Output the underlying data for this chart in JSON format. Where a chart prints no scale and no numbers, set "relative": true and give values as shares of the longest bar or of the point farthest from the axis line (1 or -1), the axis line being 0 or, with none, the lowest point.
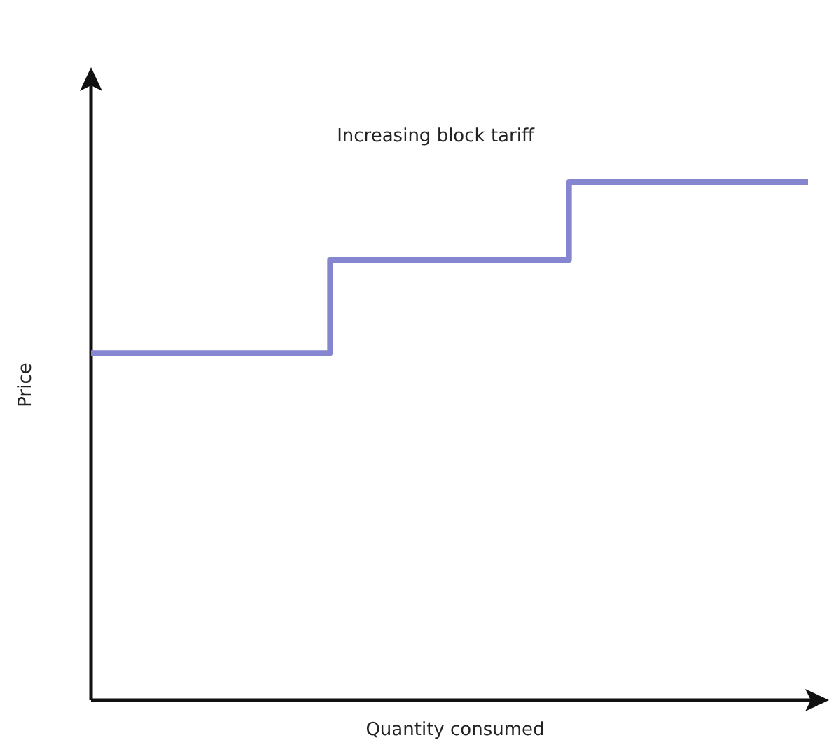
{
  "chart_data": {
    "type": "step",
    "title": "Increasing block tariff",
    "xlabel": "Quantity consumed",
    "ylabel": "Price",
    "relative": true,
    "categories": [
      null,
      null,
      null,
      null
    ],
    "series": [
      {
        "color": "#8585d0",
        "values": [
          0.67,
          0.85,
          1,
          1
        ]
      }
    ]
  }
}
